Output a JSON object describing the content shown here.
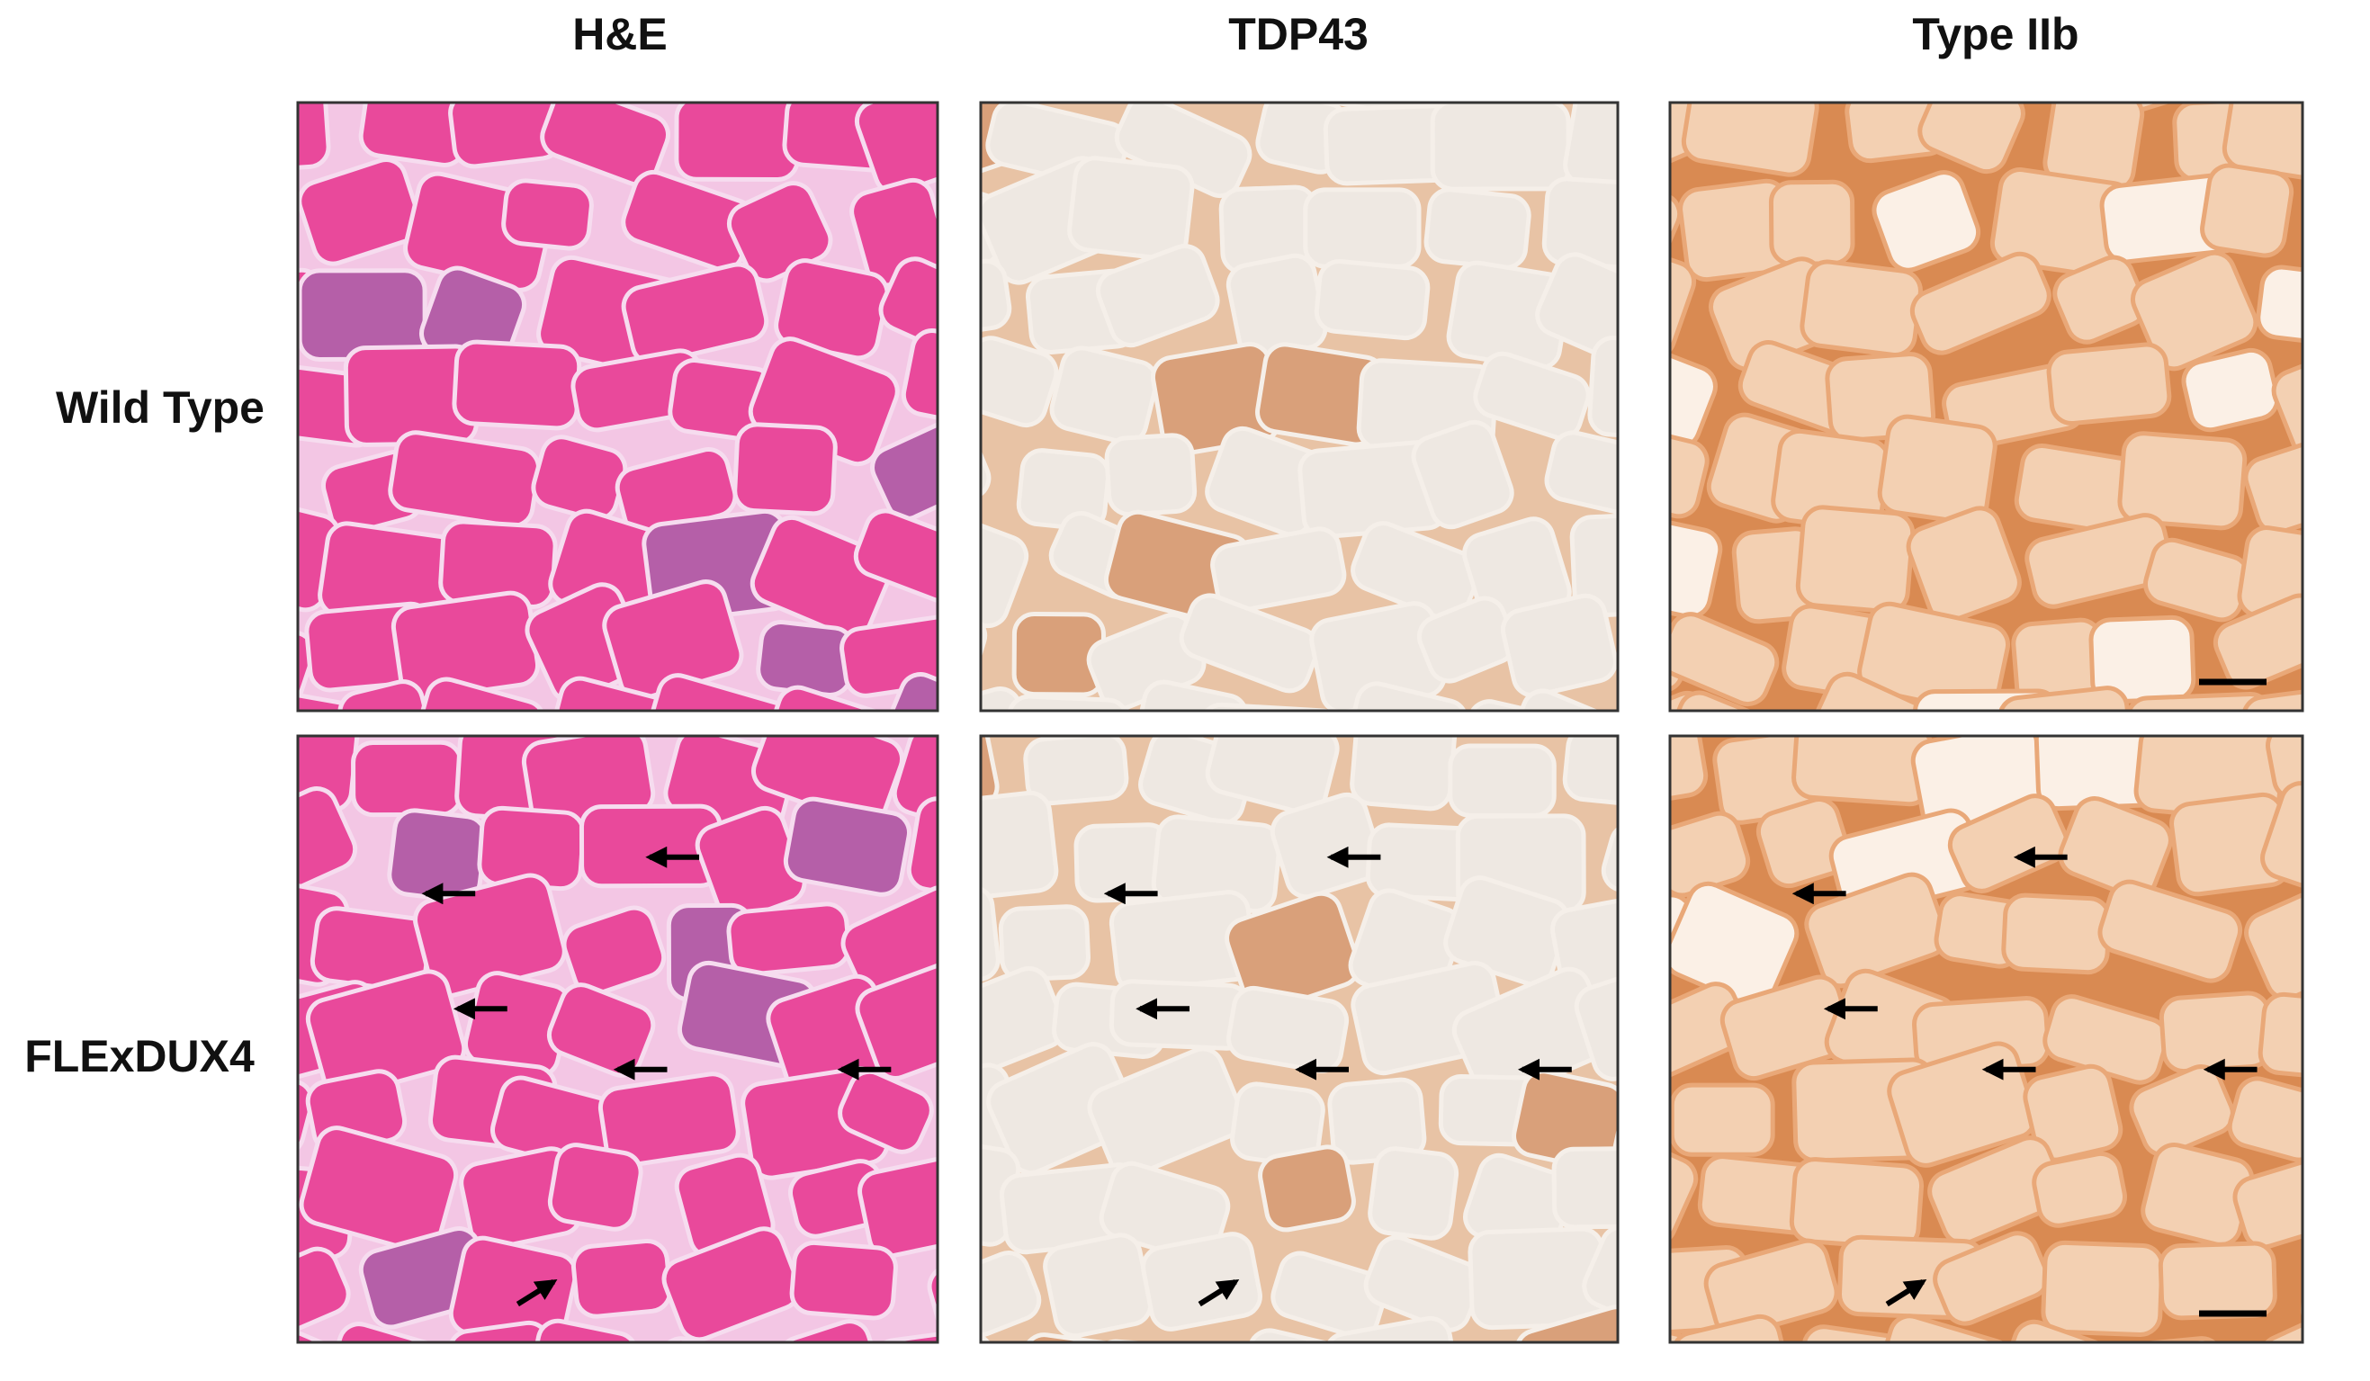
{
  "columns": [
    "H&E",
    "TDP43",
    "Type IIb"
  ],
  "rows": [
    "Wild Type",
    "FLExDUX4"
  ]
}
